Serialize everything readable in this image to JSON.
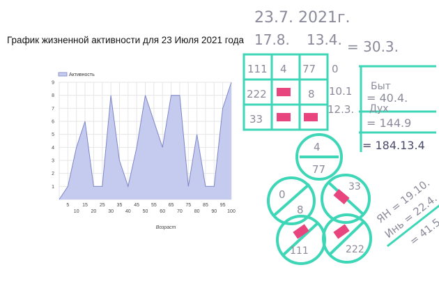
{
  "title": "График жизненной активности для 23 Июля 2021 года",
  "chart_data": {
    "type": "area",
    "legend": [
      "Активность"
    ],
    "legend_position": "top-left",
    "xlabel": "Возраст",
    "ylabel": "",
    "x_ticks": [
      5,
      10,
      15,
      20,
      25,
      30,
      35,
      40,
      45,
      50,
      55,
      60,
      65,
      70,
      75,
      80,
      85,
      90,
      95,
      100
    ],
    "y_ticks": [
      1,
      2,
      3,
      4,
      5,
      6,
      7,
      8,
      9
    ],
    "xlim": [
      0,
      100
    ],
    "ylim": [
      0,
      9
    ],
    "grid": true,
    "series": [
      {
        "name": "Активность",
        "points": [
          [
            0,
            0
          ],
          [
            5,
            1
          ],
          [
            10,
            4
          ],
          [
            15,
            6
          ],
          [
            20,
            1
          ],
          [
            25,
            1
          ],
          [
            30,
            8
          ],
          [
            35,
            3
          ],
          [
            40,
            1
          ],
          [
            45,
            4
          ],
          [
            50,
            8
          ],
          [
            55,
            6
          ],
          [
            60,
            4
          ],
          [
            65,
            8
          ],
          [
            70,
            8
          ],
          [
            75,
            1
          ],
          [
            80,
            5
          ],
          [
            85,
            1
          ],
          [
            90,
            1
          ],
          [
            95,
            7
          ],
          [
            100,
            9
          ]
        ]
      }
    ],
    "colors": {
      "fill": "#c5cbee",
      "line": "#7b85c8"
    }
  },
  "notes": {
    "date": "23.7.  2021г.",
    "line2a": "17.8.",
    "line2b": "13.4.",
    "line2c": "= 30.3.",
    "grid": [
      [
        "111",
        "4",
        "77"
      ],
      [
        "222",
        "",
        "8"
      ],
      [
        "33",
        "",
        ""
      ]
    ],
    "row_sums": [
      "0",
      "10.1",
      "12.3."
    ],
    "totals": [
      "Быт",
      "= 40.4.",
      "Дух",
      "= 144.9",
      "= 184.13.4"
    ],
    "circles": [
      "4",
      "77",
      "0",
      "8",
      "33",
      "111",
      "222"
    ],
    "diag": [
      "ЯН = 19.10.",
      "Инь = 22.4.",
      "= 41.5."
    ],
    "colors": {
      "teal": "#3dd6b6",
      "pink": "#e8457e",
      "ink": "#8a8a9a"
    }
  }
}
